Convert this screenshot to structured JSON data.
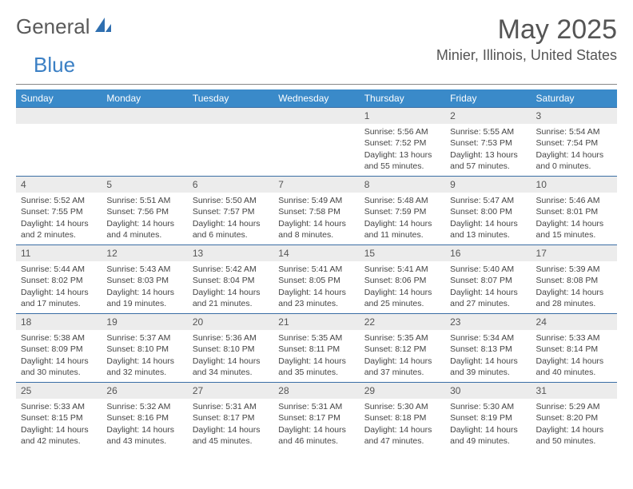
{
  "logo": {
    "word1": "General",
    "word2": "Blue",
    "accent_color": "#3a7fc4",
    "text_color": "#5a5a5a"
  },
  "title": "May 2025",
  "location": "Minier, Illinois, United States",
  "colors": {
    "header_bg": "#3a8ac9",
    "header_fg": "#ffffff",
    "daynum_bg": "#ececec",
    "border": "#3a6ea5",
    "text": "#444444"
  },
  "weekdays": [
    "Sunday",
    "Monday",
    "Tuesday",
    "Wednesday",
    "Thursday",
    "Friday",
    "Saturday"
  ],
  "weeks": [
    [
      null,
      null,
      null,
      null,
      {
        "day": "1",
        "sunrise": "Sunrise: 5:56 AM",
        "sunset": "Sunset: 7:52 PM",
        "daylight": "Daylight: 13 hours and 55 minutes."
      },
      {
        "day": "2",
        "sunrise": "Sunrise: 5:55 AM",
        "sunset": "Sunset: 7:53 PM",
        "daylight": "Daylight: 13 hours and 57 minutes."
      },
      {
        "day": "3",
        "sunrise": "Sunrise: 5:54 AM",
        "sunset": "Sunset: 7:54 PM",
        "daylight": "Daylight: 14 hours and 0 minutes."
      }
    ],
    [
      {
        "day": "4",
        "sunrise": "Sunrise: 5:52 AM",
        "sunset": "Sunset: 7:55 PM",
        "daylight": "Daylight: 14 hours and 2 minutes."
      },
      {
        "day": "5",
        "sunrise": "Sunrise: 5:51 AM",
        "sunset": "Sunset: 7:56 PM",
        "daylight": "Daylight: 14 hours and 4 minutes."
      },
      {
        "day": "6",
        "sunrise": "Sunrise: 5:50 AM",
        "sunset": "Sunset: 7:57 PM",
        "daylight": "Daylight: 14 hours and 6 minutes."
      },
      {
        "day": "7",
        "sunrise": "Sunrise: 5:49 AM",
        "sunset": "Sunset: 7:58 PM",
        "daylight": "Daylight: 14 hours and 8 minutes."
      },
      {
        "day": "8",
        "sunrise": "Sunrise: 5:48 AM",
        "sunset": "Sunset: 7:59 PM",
        "daylight": "Daylight: 14 hours and 11 minutes."
      },
      {
        "day": "9",
        "sunrise": "Sunrise: 5:47 AM",
        "sunset": "Sunset: 8:00 PM",
        "daylight": "Daylight: 14 hours and 13 minutes."
      },
      {
        "day": "10",
        "sunrise": "Sunrise: 5:46 AM",
        "sunset": "Sunset: 8:01 PM",
        "daylight": "Daylight: 14 hours and 15 minutes."
      }
    ],
    [
      {
        "day": "11",
        "sunrise": "Sunrise: 5:44 AM",
        "sunset": "Sunset: 8:02 PM",
        "daylight": "Daylight: 14 hours and 17 minutes."
      },
      {
        "day": "12",
        "sunrise": "Sunrise: 5:43 AM",
        "sunset": "Sunset: 8:03 PM",
        "daylight": "Daylight: 14 hours and 19 minutes."
      },
      {
        "day": "13",
        "sunrise": "Sunrise: 5:42 AM",
        "sunset": "Sunset: 8:04 PM",
        "daylight": "Daylight: 14 hours and 21 minutes."
      },
      {
        "day": "14",
        "sunrise": "Sunrise: 5:41 AM",
        "sunset": "Sunset: 8:05 PM",
        "daylight": "Daylight: 14 hours and 23 minutes."
      },
      {
        "day": "15",
        "sunrise": "Sunrise: 5:41 AM",
        "sunset": "Sunset: 8:06 PM",
        "daylight": "Daylight: 14 hours and 25 minutes."
      },
      {
        "day": "16",
        "sunrise": "Sunrise: 5:40 AM",
        "sunset": "Sunset: 8:07 PM",
        "daylight": "Daylight: 14 hours and 27 minutes."
      },
      {
        "day": "17",
        "sunrise": "Sunrise: 5:39 AM",
        "sunset": "Sunset: 8:08 PM",
        "daylight": "Daylight: 14 hours and 28 minutes."
      }
    ],
    [
      {
        "day": "18",
        "sunrise": "Sunrise: 5:38 AM",
        "sunset": "Sunset: 8:09 PM",
        "daylight": "Daylight: 14 hours and 30 minutes."
      },
      {
        "day": "19",
        "sunrise": "Sunrise: 5:37 AM",
        "sunset": "Sunset: 8:10 PM",
        "daylight": "Daylight: 14 hours and 32 minutes."
      },
      {
        "day": "20",
        "sunrise": "Sunrise: 5:36 AM",
        "sunset": "Sunset: 8:10 PM",
        "daylight": "Daylight: 14 hours and 34 minutes."
      },
      {
        "day": "21",
        "sunrise": "Sunrise: 5:35 AM",
        "sunset": "Sunset: 8:11 PM",
        "daylight": "Daylight: 14 hours and 35 minutes."
      },
      {
        "day": "22",
        "sunrise": "Sunrise: 5:35 AM",
        "sunset": "Sunset: 8:12 PM",
        "daylight": "Daylight: 14 hours and 37 minutes."
      },
      {
        "day": "23",
        "sunrise": "Sunrise: 5:34 AM",
        "sunset": "Sunset: 8:13 PM",
        "daylight": "Daylight: 14 hours and 39 minutes."
      },
      {
        "day": "24",
        "sunrise": "Sunrise: 5:33 AM",
        "sunset": "Sunset: 8:14 PM",
        "daylight": "Daylight: 14 hours and 40 minutes."
      }
    ],
    [
      {
        "day": "25",
        "sunrise": "Sunrise: 5:33 AM",
        "sunset": "Sunset: 8:15 PM",
        "daylight": "Daylight: 14 hours and 42 minutes."
      },
      {
        "day": "26",
        "sunrise": "Sunrise: 5:32 AM",
        "sunset": "Sunset: 8:16 PM",
        "daylight": "Daylight: 14 hours and 43 minutes."
      },
      {
        "day": "27",
        "sunrise": "Sunrise: 5:31 AM",
        "sunset": "Sunset: 8:17 PM",
        "daylight": "Daylight: 14 hours and 45 minutes."
      },
      {
        "day": "28",
        "sunrise": "Sunrise: 5:31 AM",
        "sunset": "Sunset: 8:17 PM",
        "daylight": "Daylight: 14 hours and 46 minutes."
      },
      {
        "day": "29",
        "sunrise": "Sunrise: 5:30 AM",
        "sunset": "Sunset: 8:18 PM",
        "daylight": "Daylight: 14 hours and 47 minutes."
      },
      {
        "day": "30",
        "sunrise": "Sunrise: 5:30 AM",
        "sunset": "Sunset: 8:19 PM",
        "daylight": "Daylight: 14 hours and 49 minutes."
      },
      {
        "day": "31",
        "sunrise": "Sunrise: 5:29 AM",
        "sunset": "Sunset: 8:20 PM",
        "daylight": "Daylight: 14 hours and 50 minutes."
      }
    ]
  ]
}
